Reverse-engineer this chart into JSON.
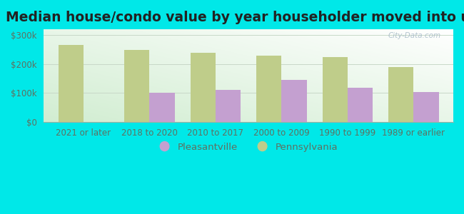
{
  "title": "Median house/condo value by year householder moved into unit",
  "categories": [
    "2021 or later",
    "2018 to 2020",
    "2010 to 2017",
    "2000 to 2009",
    "1990 to 1999",
    "1989 or earlier"
  ],
  "pleasantville_values": [
    0,
    100000,
    110000,
    145000,
    118000,
    102000
  ],
  "pennsylvania_values": [
    265000,
    248000,
    238000,
    230000,
    223000,
    190000
  ],
  "pleasantville_color": "#c4a0d0",
  "pennsylvania_color": "#bfcd8a",
  "background_top_color": "#d8eed8",
  "background_bottom_color": "#f0faf0",
  "outer_background": "#00e8e8",
  "ylim": [
    0,
    320000
  ],
  "yticks": [
    0,
    100000,
    200000,
    300000
  ],
  "ytick_labels": [
    "$0",
    "$100k",
    "$200k",
    "$300k"
  ],
  "bar_width": 0.38,
  "legend_labels": [
    "Pleasantville",
    "Pennsylvania"
  ],
  "watermark": "City-Data.com",
  "title_fontsize": 13.5,
  "tick_fontsize": 8.5,
  "legend_fontsize": 9.5,
  "grid_color": "#c8d8c8",
  "spine_color": "#a0b0a0",
  "tick_color": "#607060"
}
